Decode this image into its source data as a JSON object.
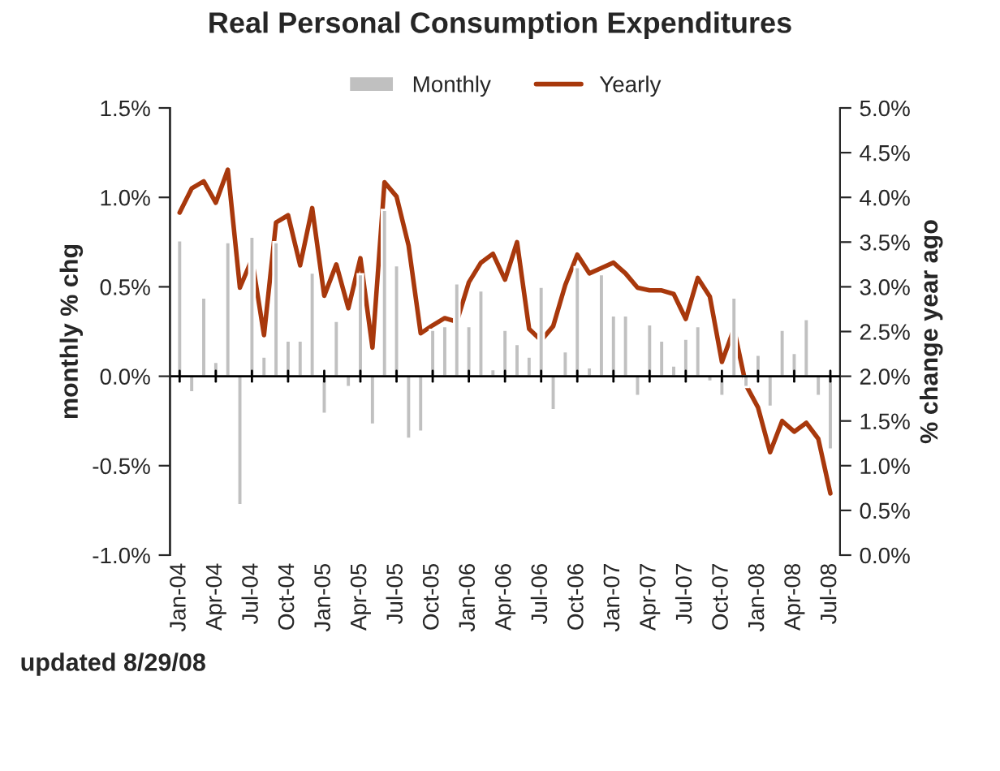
{
  "chart_data": {
    "type": "bar",
    "title": "Real Personal Consumption Expenditures",
    "categories": [
      "Jan-04",
      null,
      null,
      "Apr-04",
      null,
      null,
      "Jul-04",
      null,
      null,
      "Oct-04",
      null,
      null,
      "Jan-05",
      null,
      null,
      "Apr-05",
      null,
      null,
      "Jul-05",
      null,
      null,
      "Oct-05",
      null,
      null,
      "Jan-06",
      null,
      null,
      "Apr-06",
      null,
      null,
      "Jul-06",
      null,
      null,
      "Oct-06",
      null,
      null,
      "Jan-07",
      null,
      null,
      "Apr-07",
      null,
      null,
      "Jul-07",
      null,
      null,
      "Oct-07",
      null,
      null,
      "Jan-08",
      null,
      null,
      "Apr-08",
      null,
      null,
      "Jul-08"
    ],
    "series": [
      {
        "name": "Monthly",
        "color": "#c0c0c0",
        "values": [
          0.76,
          -0.09,
          0.44,
          0.08,
          0.75,
          -0.72,
          0.78,
          0.11,
          0.75,
          0.2,
          0.2,
          0.58,
          -0.21,
          0.31,
          -0.06,
          0.57,
          -0.27,
          0.93,
          0.62,
          -0.35,
          -0.31,
          0.26,
          0.28,
          0.52,
          0.28,
          0.48,
          0.04,
          0.26,
          0.18,
          0.11,
          0.5,
          -0.19,
          0.14,
          0.61,
          0.05,
          0.57,
          0.34,
          0.34,
          -0.11,
          0.29,
          0.2,
          0.06,
          0.21,
          0.28,
          -0.03,
          -0.11,
          0.44,
          -0.06,
          0.12,
          -0.17,
          0.26,
          0.13,
          0.32,
          -0.11,
          -0.41
        ]
      },
      {
        "name": "Yearly",
        "type": "line",
        "axis": "y2",
        "color": "#a8380c",
        "values": [
          3.83,
          4.1,
          4.18,
          3.94,
          4.31,
          2.99,
          3.31,
          2.46,
          3.72,
          3.8,
          3.24,
          3.88,
          2.9,
          3.25,
          2.76,
          3.32,
          2.32,
          4.17,
          4.01,
          3.46,
          2.48,
          2.57,
          2.65,
          2.61,
          3.05,
          3.27,
          3.37,
          3.08,
          3.5,
          2.53,
          2.4,
          2.56,
          3.02,
          3.36,
          3.15,
          3.21,
          3.27,
          3.15,
          2.99,
          2.96,
          2.96,
          2.92,
          2.64,
          3.1,
          2.89,
          2.16,
          2.53,
          1.9,
          1.65,
          1.15,
          1.5,
          1.38,
          1.48,
          1.3,
          0.69
        ]
      }
    ],
    "ylabel": "monthly % chg",
    "y2label": "% change year ago",
    "ylim": [
      -1.0,
      1.5
    ],
    "yticks": [
      {
        "value": -1.0,
        "label": "-1.0%"
      },
      {
        "value": -0.5,
        "label": "-0.5%"
      },
      {
        "value": 0.0,
        "label": "0.0%"
      },
      {
        "value": 0.5,
        "label": "0.5%"
      },
      {
        "value": 1.0,
        "label": "1.0%"
      },
      {
        "value": 1.5,
        "label": "1.5%"
      }
    ],
    "y2lim": [
      0.0,
      5.0
    ],
    "y2ticks": [
      {
        "value": 0.0,
        "label": "0.0%"
      },
      {
        "value": 0.5,
        "label": "0.5%"
      },
      {
        "value": 1.0,
        "label": "1.0%"
      },
      {
        "value": 1.5,
        "label": "1.5%"
      },
      {
        "value": 2.0,
        "label": "2.0%"
      },
      {
        "value": 2.5,
        "label": "2.5%"
      },
      {
        "value": 3.0,
        "label": "3.0%"
      },
      {
        "value": 3.5,
        "label": "3.5%"
      },
      {
        "value": 4.0,
        "label": "4.0%"
      },
      {
        "value": 4.5,
        "label": "4.5%"
      },
      {
        "value": 5.0,
        "label": "5.0%"
      }
    ],
    "annotations": [
      "updated 8/29/08"
    ],
    "ref_lines": [
      {
        "axis": "y",
        "value": 0.0,
        "color": "#000000"
      }
    ],
    "legend": "top"
  }
}
